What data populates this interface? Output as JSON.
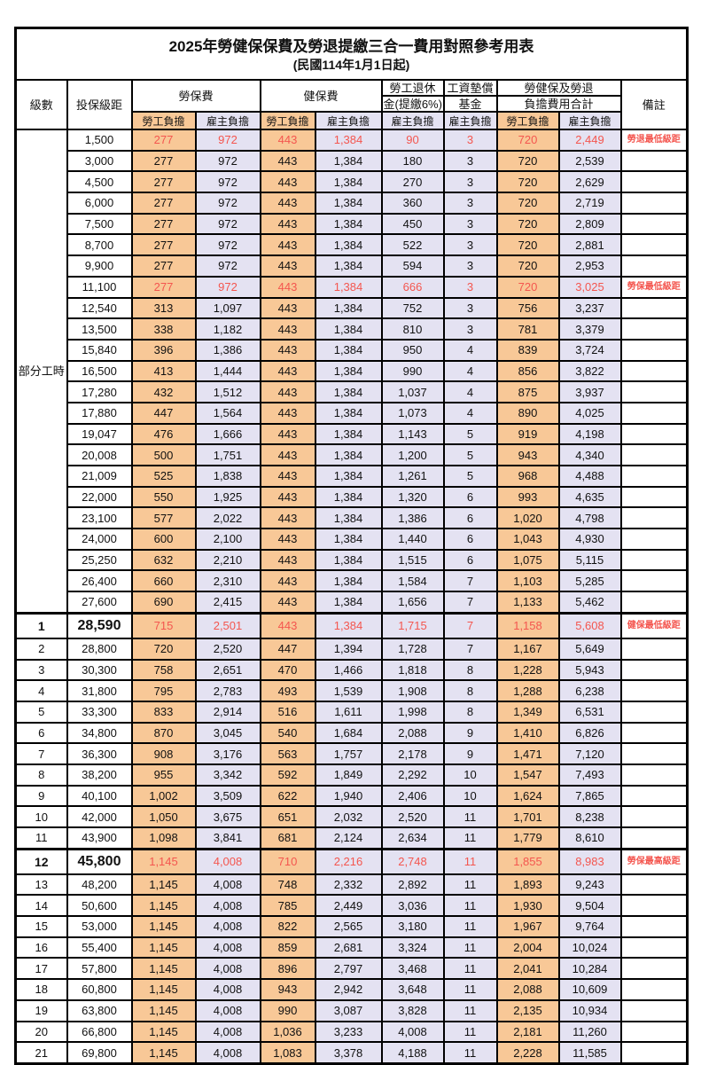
{
  "title": "2025年勞健保保費及勞退提繳三合一費用對照參考用表",
  "subtitle": "(民國114年1月1日起)",
  "part_time_label": "部分工時",
  "colors": {
    "employee_bg": "#F8C897",
    "employer_bg": "#E4E2F2",
    "highlight_text": "#F4564F"
  },
  "header": {
    "level": "級數",
    "bracket": "投保級距",
    "labor_insurance": "勞保費",
    "health_insurance": "健保費",
    "pension_line1": "勞工退休",
    "pension_line2": "金(提繳6%)",
    "fund_line1": "工資墊償",
    "fund_line2": "基金",
    "total_line1": "勞健保及勞退",
    "total_line2": "負擔費用合計",
    "remark": "備註",
    "employee": "勞工負擔",
    "employer": "雇主負擔"
  },
  "rows": [
    {
      "level": "",
      "bracket": "1,500",
      "labor_emp": "277",
      "labor_er": "972",
      "health_emp": "443",
      "health_er": "1,384",
      "pension": "90",
      "fund": "3",
      "total_emp": "720",
      "total_er": "2,449",
      "remark": "勞退最低級距",
      "highlight": true,
      "emphasized": false
    },
    {
      "level": "",
      "bracket": "3,000",
      "labor_emp": "277",
      "labor_er": "972",
      "health_emp": "443",
      "health_er": "1,384",
      "pension": "180",
      "fund": "3",
      "total_emp": "720",
      "total_er": "2,539",
      "remark": "",
      "highlight": false,
      "emphasized": false
    },
    {
      "level": "",
      "bracket": "4,500",
      "labor_emp": "277",
      "labor_er": "972",
      "health_emp": "443",
      "health_er": "1,384",
      "pension": "270",
      "fund": "3",
      "total_emp": "720",
      "total_er": "2,629",
      "remark": "",
      "highlight": false,
      "emphasized": false
    },
    {
      "level": "",
      "bracket": "6,000",
      "labor_emp": "277",
      "labor_er": "972",
      "health_emp": "443",
      "health_er": "1,384",
      "pension": "360",
      "fund": "3",
      "total_emp": "720",
      "total_er": "2,719",
      "remark": "",
      "highlight": false,
      "emphasized": false
    },
    {
      "level": "",
      "bracket": "7,500",
      "labor_emp": "277",
      "labor_er": "972",
      "health_emp": "443",
      "health_er": "1,384",
      "pension": "450",
      "fund": "3",
      "total_emp": "720",
      "total_er": "2,809",
      "remark": "",
      "highlight": false,
      "emphasized": false
    },
    {
      "level": "",
      "bracket": "8,700",
      "labor_emp": "277",
      "labor_er": "972",
      "health_emp": "443",
      "health_er": "1,384",
      "pension": "522",
      "fund": "3",
      "total_emp": "720",
      "total_er": "2,881",
      "remark": "",
      "highlight": false,
      "emphasized": false
    },
    {
      "level": "",
      "bracket": "9,900",
      "labor_emp": "277",
      "labor_er": "972",
      "health_emp": "443",
      "health_er": "1,384",
      "pension": "594",
      "fund": "3",
      "total_emp": "720",
      "total_er": "2,953",
      "remark": "",
      "highlight": false,
      "emphasized": false
    },
    {
      "level": "",
      "bracket": "11,100",
      "labor_emp": "277",
      "labor_er": "972",
      "health_emp": "443",
      "health_er": "1,384",
      "pension": "666",
      "fund": "3",
      "total_emp": "720",
      "total_er": "3,025",
      "remark": "勞保最低級距",
      "highlight": true,
      "emphasized": false
    },
    {
      "level": "",
      "bracket": "12,540",
      "labor_emp": "313",
      "labor_er": "1,097",
      "health_emp": "443",
      "health_er": "1,384",
      "pension": "752",
      "fund": "3",
      "total_emp": "756",
      "total_er": "3,237",
      "remark": "",
      "highlight": false,
      "emphasized": false
    },
    {
      "level": "",
      "bracket": "13,500",
      "labor_emp": "338",
      "labor_er": "1,182",
      "health_emp": "443",
      "health_er": "1,384",
      "pension": "810",
      "fund": "3",
      "total_emp": "781",
      "total_er": "3,379",
      "remark": "",
      "highlight": false,
      "emphasized": false
    },
    {
      "level": "",
      "bracket": "15,840",
      "labor_emp": "396",
      "labor_er": "1,386",
      "health_emp": "443",
      "health_er": "1,384",
      "pension": "950",
      "fund": "4",
      "total_emp": "839",
      "total_er": "3,724",
      "remark": "",
      "highlight": false,
      "emphasized": false
    },
    {
      "level": "",
      "bracket": "16,500",
      "labor_emp": "413",
      "labor_er": "1,444",
      "health_emp": "443",
      "health_er": "1,384",
      "pension": "990",
      "fund": "4",
      "total_emp": "856",
      "total_er": "3,822",
      "remark": "",
      "highlight": false,
      "emphasized": false
    },
    {
      "level": "",
      "bracket": "17,280",
      "labor_emp": "432",
      "labor_er": "1,512",
      "health_emp": "443",
      "health_er": "1,384",
      "pension": "1,037",
      "fund": "4",
      "total_emp": "875",
      "total_er": "3,937",
      "remark": "",
      "highlight": false,
      "emphasized": false
    },
    {
      "level": "",
      "bracket": "17,880",
      "labor_emp": "447",
      "labor_er": "1,564",
      "health_emp": "443",
      "health_er": "1,384",
      "pension": "1,073",
      "fund": "4",
      "total_emp": "890",
      "total_er": "4,025",
      "remark": "",
      "highlight": false,
      "emphasized": false
    },
    {
      "level": "",
      "bracket": "19,047",
      "labor_emp": "476",
      "labor_er": "1,666",
      "health_emp": "443",
      "health_er": "1,384",
      "pension": "1,143",
      "fund": "5",
      "total_emp": "919",
      "total_er": "4,198",
      "remark": "",
      "highlight": false,
      "emphasized": false
    },
    {
      "level": "",
      "bracket": "20,008",
      "labor_emp": "500",
      "labor_er": "1,751",
      "health_emp": "443",
      "health_er": "1,384",
      "pension": "1,200",
      "fund": "5",
      "total_emp": "943",
      "total_er": "4,340",
      "remark": "",
      "highlight": false,
      "emphasized": false
    },
    {
      "level": "",
      "bracket": "21,009",
      "labor_emp": "525",
      "labor_er": "1,838",
      "health_emp": "443",
      "health_er": "1,384",
      "pension": "1,261",
      "fund": "5",
      "total_emp": "968",
      "total_er": "4,488",
      "remark": "",
      "highlight": false,
      "emphasized": false
    },
    {
      "level": "",
      "bracket": "22,000",
      "labor_emp": "550",
      "labor_er": "1,925",
      "health_emp": "443",
      "health_er": "1,384",
      "pension": "1,320",
      "fund": "6",
      "total_emp": "993",
      "total_er": "4,635",
      "remark": "",
      "highlight": false,
      "emphasized": false
    },
    {
      "level": "",
      "bracket": "23,100",
      "labor_emp": "577",
      "labor_er": "2,022",
      "health_emp": "443",
      "health_er": "1,384",
      "pension": "1,386",
      "fund": "6",
      "total_emp": "1,020",
      "total_er": "4,798",
      "remark": "",
      "highlight": false,
      "emphasized": false
    },
    {
      "level": "",
      "bracket": "24,000",
      "labor_emp": "600",
      "labor_er": "2,100",
      "health_emp": "443",
      "health_er": "1,384",
      "pension": "1,440",
      "fund": "6",
      "total_emp": "1,043",
      "total_er": "4,930",
      "remark": "",
      "highlight": false,
      "emphasized": false
    },
    {
      "level": "",
      "bracket": "25,250",
      "labor_emp": "632",
      "labor_er": "2,210",
      "health_emp": "443",
      "health_er": "1,384",
      "pension": "1,515",
      "fund": "6",
      "total_emp": "1,075",
      "total_er": "5,115",
      "remark": "",
      "highlight": false,
      "emphasized": false
    },
    {
      "level": "",
      "bracket": "26,400",
      "labor_emp": "660",
      "labor_er": "2,310",
      "health_emp": "443",
      "health_er": "1,384",
      "pension": "1,584",
      "fund": "7",
      "total_emp": "1,103",
      "total_er": "5,285",
      "remark": "",
      "highlight": false,
      "emphasized": false
    },
    {
      "level": "",
      "bracket": "27,600",
      "labor_emp": "690",
      "labor_er": "2,415",
      "health_emp": "443",
      "health_er": "1,384",
      "pension": "1,656",
      "fund": "7",
      "total_emp": "1,133",
      "total_er": "5,462",
      "remark": "",
      "highlight": false,
      "emphasized": false
    },
    {
      "level": "1",
      "bracket": "28,590",
      "labor_emp": "715",
      "labor_er": "2,501",
      "health_emp": "443",
      "health_er": "1,384",
      "pension": "1,715",
      "fund": "7",
      "total_emp": "1,158",
      "total_er": "5,608",
      "remark": "健保最低級距",
      "highlight": true,
      "emphasized": true
    },
    {
      "level": "2",
      "bracket": "28,800",
      "labor_emp": "720",
      "labor_er": "2,520",
      "health_emp": "447",
      "health_er": "1,394",
      "pension": "1,728",
      "fund": "7",
      "total_emp": "1,167",
      "total_er": "5,649",
      "remark": "",
      "highlight": false,
      "emphasized": false
    },
    {
      "level": "3",
      "bracket": "30,300",
      "labor_emp": "758",
      "labor_er": "2,651",
      "health_emp": "470",
      "health_er": "1,466",
      "pension": "1,818",
      "fund": "8",
      "total_emp": "1,228",
      "total_er": "5,943",
      "remark": "",
      "highlight": false,
      "emphasized": false
    },
    {
      "level": "4",
      "bracket": "31,800",
      "labor_emp": "795",
      "labor_er": "2,783",
      "health_emp": "493",
      "health_er": "1,539",
      "pension": "1,908",
      "fund": "8",
      "total_emp": "1,288",
      "total_er": "6,238",
      "remark": "",
      "highlight": false,
      "emphasized": false
    },
    {
      "level": "5",
      "bracket": "33,300",
      "labor_emp": "833",
      "labor_er": "2,914",
      "health_emp": "516",
      "health_er": "1,611",
      "pension": "1,998",
      "fund": "8",
      "total_emp": "1,349",
      "total_er": "6,531",
      "remark": "",
      "highlight": false,
      "emphasized": false
    },
    {
      "level": "6",
      "bracket": "34,800",
      "labor_emp": "870",
      "labor_er": "3,045",
      "health_emp": "540",
      "health_er": "1,684",
      "pension": "2,088",
      "fund": "9",
      "total_emp": "1,410",
      "total_er": "6,826",
      "remark": "",
      "highlight": false,
      "emphasized": false
    },
    {
      "level": "7",
      "bracket": "36,300",
      "labor_emp": "908",
      "labor_er": "3,176",
      "health_emp": "563",
      "health_er": "1,757",
      "pension": "2,178",
      "fund": "9",
      "total_emp": "1,471",
      "total_er": "7,120",
      "remark": "",
      "highlight": false,
      "emphasized": false
    },
    {
      "level": "8",
      "bracket": "38,200",
      "labor_emp": "955",
      "labor_er": "3,342",
      "health_emp": "592",
      "health_er": "1,849",
      "pension": "2,292",
      "fund": "10",
      "total_emp": "1,547",
      "total_er": "7,493",
      "remark": "",
      "highlight": false,
      "emphasized": false
    },
    {
      "level": "9",
      "bracket": "40,100",
      "labor_emp": "1,002",
      "labor_er": "3,509",
      "health_emp": "622",
      "health_er": "1,940",
      "pension": "2,406",
      "fund": "10",
      "total_emp": "1,624",
      "total_er": "7,865",
      "remark": "",
      "highlight": false,
      "emphasized": false
    },
    {
      "level": "10",
      "bracket": "42,000",
      "labor_emp": "1,050",
      "labor_er": "3,675",
      "health_emp": "651",
      "health_er": "2,032",
      "pension": "2,520",
      "fund": "11",
      "total_emp": "1,701",
      "total_er": "8,238",
      "remark": "",
      "highlight": false,
      "emphasized": false
    },
    {
      "level": "11",
      "bracket": "43,900",
      "labor_emp": "1,098",
      "labor_er": "3,841",
      "health_emp": "681",
      "health_er": "2,124",
      "pension": "2,634",
      "fund": "11",
      "total_emp": "1,779",
      "total_er": "8,610",
      "remark": "",
      "highlight": false,
      "emphasized": false
    },
    {
      "level": "12",
      "bracket": "45,800",
      "labor_emp": "1,145",
      "labor_er": "4,008",
      "health_emp": "710",
      "health_er": "2,216",
      "pension": "2,748",
      "fund": "11",
      "total_emp": "1,855",
      "total_er": "8,983",
      "remark": "勞保最高級距",
      "highlight": true,
      "emphasized": true
    },
    {
      "level": "13",
      "bracket": "48,200",
      "labor_emp": "1,145",
      "labor_er": "4,008",
      "health_emp": "748",
      "health_er": "2,332",
      "pension": "2,892",
      "fund": "11",
      "total_emp": "1,893",
      "total_er": "9,243",
      "remark": "",
      "highlight": false,
      "emphasized": false
    },
    {
      "level": "14",
      "bracket": "50,600",
      "labor_emp": "1,145",
      "labor_er": "4,008",
      "health_emp": "785",
      "health_er": "2,449",
      "pension": "3,036",
      "fund": "11",
      "total_emp": "1,930",
      "total_er": "9,504",
      "remark": "",
      "highlight": false,
      "emphasized": false
    },
    {
      "level": "15",
      "bracket": "53,000",
      "labor_emp": "1,145",
      "labor_er": "4,008",
      "health_emp": "822",
      "health_er": "2,565",
      "pension": "3,180",
      "fund": "11",
      "total_emp": "1,967",
      "total_er": "9,764",
      "remark": "",
      "highlight": false,
      "emphasized": false
    },
    {
      "level": "16",
      "bracket": "55,400",
      "labor_emp": "1,145",
      "labor_er": "4,008",
      "health_emp": "859",
      "health_er": "2,681",
      "pension": "3,324",
      "fund": "11",
      "total_emp": "2,004",
      "total_er": "10,024",
      "remark": "",
      "highlight": false,
      "emphasized": false
    },
    {
      "level": "17",
      "bracket": "57,800",
      "labor_emp": "1,145",
      "labor_er": "4,008",
      "health_emp": "896",
      "health_er": "2,797",
      "pension": "3,468",
      "fund": "11",
      "total_emp": "2,041",
      "total_er": "10,284",
      "remark": "",
      "highlight": false,
      "emphasized": false
    },
    {
      "level": "18",
      "bracket": "60,800",
      "labor_emp": "1,145",
      "labor_er": "4,008",
      "health_emp": "943",
      "health_er": "2,942",
      "pension": "3,648",
      "fund": "11",
      "total_emp": "2,088",
      "total_er": "10,609",
      "remark": "",
      "highlight": false,
      "emphasized": false
    },
    {
      "level": "19",
      "bracket": "63,800",
      "labor_emp": "1,145",
      "labor_er": "4,008",
      "health_emp": "990",
      "health_er": "3,087",
      "pension": "3,828",
      "fund": "11",
      "total_emp": "2,135",
      "total_er": "10,934",
      "remark": "",
      "highlight": false,
      "emphasized": false
    },
    {
      "level": "20",
      "bracket": "66,800",
      "labor_emp": "1,145",
      "labor_er": "4,008",
      "health_emp": "1,036",
      "health_er": "3,233",
      "pension": "4,008",
      "fund": "11",
      "total_emp": "2,181",
      "total_er": "11,260",
      "remark": "",
      "highlight": false,
      "emphasized": false
    },
    {
      "level": "21",
      "bracket": "69,800",
      "labor_emp": "1,145",
      "labor_er": "4,008",
      "health_emp": "1,083",
      "health_er": "3,378",
      "pension": "4,188",
      "fund": "11",
      "total_emp": "2,228",
      "total_er": "11,585",
      "remark": "",
      "highlight": false,
      "emphasized": false
    }
  ]
}
